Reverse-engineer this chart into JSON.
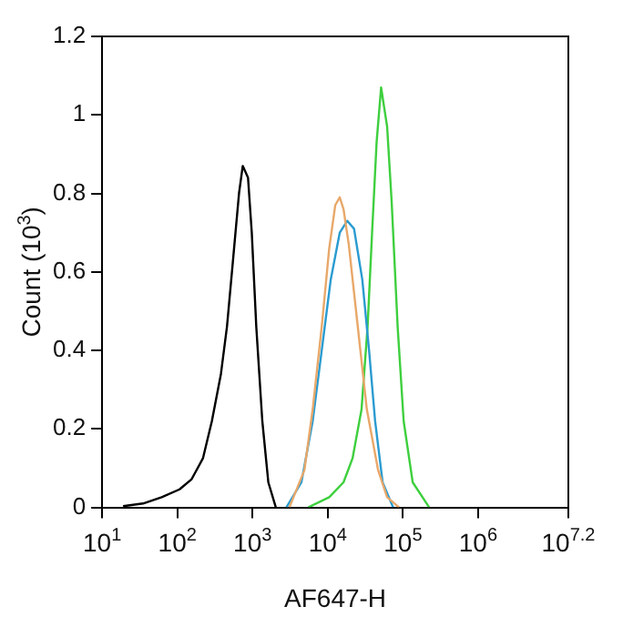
{
  "chart_data": {
    "type": "line",
    "xlabel": "AF647-H",
    "ylabel": "Count (10$^{3}$)",
    "log": "x",
    "marker": "none",
    "line_style": "solid",
    "xlim": [
      10,
      15848932
    ],
    "ylim": [
      0,
      1.2
    ],
    "xticks": [
      {
        "value": 10,
        "label": "10$^{1}$"
      },
      {
        "value": 100,
        "label": "10$^{2}$"
      },
      {
        "value": 1000,
        "label": "10$^{3}$"
      },
      {
        "value": 10000,
        "label": "10$^{4}$"
      },
      {
        "value": 100000,
        "label": "10$^{5}$"
      },
      {
        "value": 1000000,
        "label": "10$^{6}$"
      },
      {
        "value": 15848932,
        "label": "10$^{7.2}$"
      }
    ],
    "yticks": [
      0,
      0.2,
      0.4,
      0.6,
      0.8,
      1,
      1.2
    ],
    "series": [
      {
        "color": "#000000",
        "x": [
          19,
          35,
          62,
          107,
          155,
          219,
          288,
          380,
          457,
          550,
          661,
          741,
          871,
          977,
          1122,
          1349,
          1622,
          2042
        ],
        "values": [
          0.003,
          0.01,
          0.026,
          0.046,
          0.072,
          0.125,
          0.22,
          0.34,
          0.46,
          0.63,
          0.8,
          0.87,
          0.84,
          0.7,
          0.46,
          0.22,
          0.064,
          0
        ]
      },
      {
        "color": "#e8a86a",
        "x": [
          3090,
          4898,
          6310,
          8318,
          10470,
          12590,
          14450,
          16220,
          19050,
          25120,
          33110,
          46770,
          61660,
          89130
        ],
        "values": [
          0,
          0.095,
          0.25,
          0.46,
          0.66,
          0.77,
          0.79,
          0.76,
          0.67,
          0.46,
          0.25,
          0.095,
          0.026,
          0
        ]
      },
      {
        "color": "#2a9bd0",
        "x": [
          2818,
          4467,
          6310,
          8318,
          10960,
          14450,
          18200,
          22390,
          28840,
          35480,
          42660,
          53700,
          74130
        ],
        "values": [
          0,
          0.064,
          0.22,
          0.4,
          0.58,
          0.7,
          0.73,
          0.71,
          0.58,
          0.4,
          0.22,
          0.064,
          0
        ]
      },
      {
        "color": "#3ecf3e",
        "x": [
          5495,
          10470,
          16220,
          21380,
          28180,
          33880,
          38900,
          44670,
          51290,
          61660,
          70790,
          85110,
          102300,
          134900,
          223900
        ],
        "values": [
          0,
          0.026,
          0.064,
          0.125,
          0.25,
          0.46,
          0.7,
          0.93,
          1.07,
          0.97,
          0.78,
          0.46,
          0.22,
          0.064,
          0
        ]
      }
    ]
  }
}
